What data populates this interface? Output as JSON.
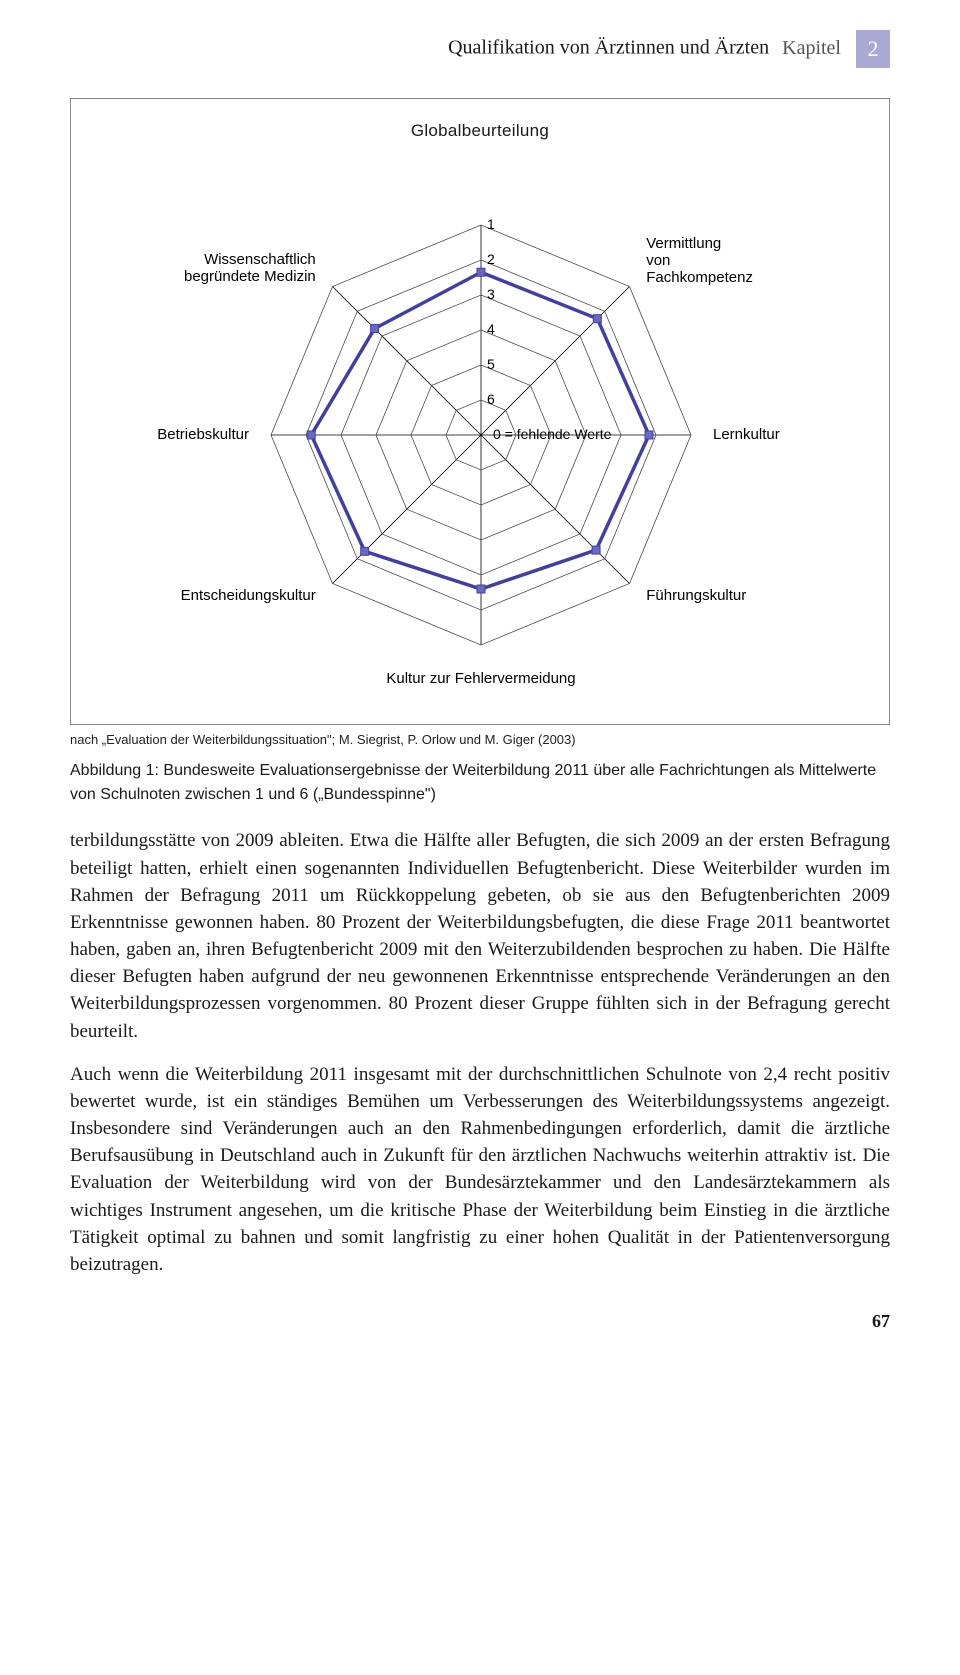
{
  "header": {
    "title": "Qualifikation von Ärztinnen und Ärzten",
    "section_label": "Kapitel",
    "chapter_number": "2"
  },
  "chart": {
    "type": "radar",
    "title": "Globalbeurteilung",
    "center_label": "0 = fehlende Werte",
    "bottom_label": "Kultur zur Fehlervermeidung",
    "axes": [
      {
        "name": "Globalbeurteilung"
      },
      {
        "name": "Vermittlung von Fachkompetenz"
      },
      {
        "name": "Lernkultur"
      },
      {
        "name": "Führungskultur"
      },
      {
        "name": "Kultur zur Fehlervermeidung"
      },
      {
        "name": "Entscheidungskultur"
      },
      {
        "name": "Betriebskultur"
      },
      {
        "name": "Wissenschaftlich begründete Medizin"
      }
    ],
    "axis_labels_visible": [
      {
        "text_lines": [
          "Vermittlung",
          "von",
          "Fachkompetenz"
        ],
        "anchor": "start"
      },
      {
        "text_lines": [
          "Lernkultur"
        ],
        "anchor": "start"
      },
      {
        "text_lines": [
          "Führungskultur"
        ],
        "anchor": "start"
      },
      {
        "text_lines": [
          "Entscheidungskultur"
        ],
        "anchor": "end"
      },
      {
        "text_lines": [
          "Betriebskultur"
        ],
        "anchor": "end"
      },
      {
        "text_lines": [
          "Wissenschaftlich",
          "begründete Medizin"
        ],
        "anchor": "end"
      }
    ],
    "rings": {
      "count": 6,
      "labels": [
        "1",
        "2",
        "3",
        "4",
        "5",
        "6"
      ]
    },
    "values": [
      2.35,
      2.3,
      2.2,
      2.35,
      2.6,
      2.3,
      2.15,
      2.7
    ],
    "scale_min": 0,
    "scale_max": 6,
    "series_color": "#42409c",
    "marker_fill": "#6a68c2",
    "grid_color": "#4a4a4a",
    "axis_color": "#000000",
    "background_color": "#ffffff"
  },
  "source": "nach „Evaluation der Weiterbildungssituation\"; M. Siegrist, P. Orlow und M. Giger (2003)",
  "caption": {
    "label": "Abbildung 1:",
    "text": "Bundesweite Evaluationsergebnisse der Weiterbildung 2011 über alle Fachrichtungen als Mittelwerte von Schulnoten zwischen 1 und 6 („Bundesspinne\")"
  },
  "body": {
    "p1": "terbildungsstätte von 2009 ableiten. Etwa die Hälfte aller Befugten, die sich 2009 an der ersten Befragung beteiligt hatten, erhielt einen sogenannten Individuellen Befugtenbericht. Diese Weiterbilder wurden im Rahmen der Befragung 2011 um Rückkoppelung gebeten, ob sie aus den Befugtenberichten 2009 Erkenntnisse gewonnen haben. 80 Prozent der Weiterbildungsbefugten, die diese Frage 2011 beantwortet haben, gaben an, ihren Befugtenbericht 2009 mit den Weiterzubildenden besprochen zu haben. Die Hälfte dieser Befugten haben aufgrund der neu gewonnenen Erkenntnisse entsprechende Veränderungen an den Weiterbildungsprozessen vorgenommen. 80 Prozent dieser Gruppe fühlten sich in der Befragung gerecht beurteilt.",
    "p2": "Auch wenn die Weiterbildung 2011 insgesamt mit der durchschnittlichen Schulnote von 2,4 recht positiv bewertet wurde, ist ein ständiges Bemühen um Verbesserungen des Weiterbildungssystems angezeigt. Insbesondere sind Veränderungen auch an den Rahmenbedingungen erforderlich, damit die ärztliche Berufsausübung in Deutschland auch in Zukunft für den ärztlichen Nachwuchs weiterhin attraktiv ist. Die Evaluation der Weiterbildung wird von der Bundesärztekammer und den Landesärztekammern als wichtiges Instrument angesehen, um die kritische Phase der Weiterbildung beim Einstieg in die ärztliche Tätigkeit optimal zu bahnen und somit langfristig zu einer hohen Qualität in der Patientenversorgung beizutragen."
  },
  "page_number": "67"
}
